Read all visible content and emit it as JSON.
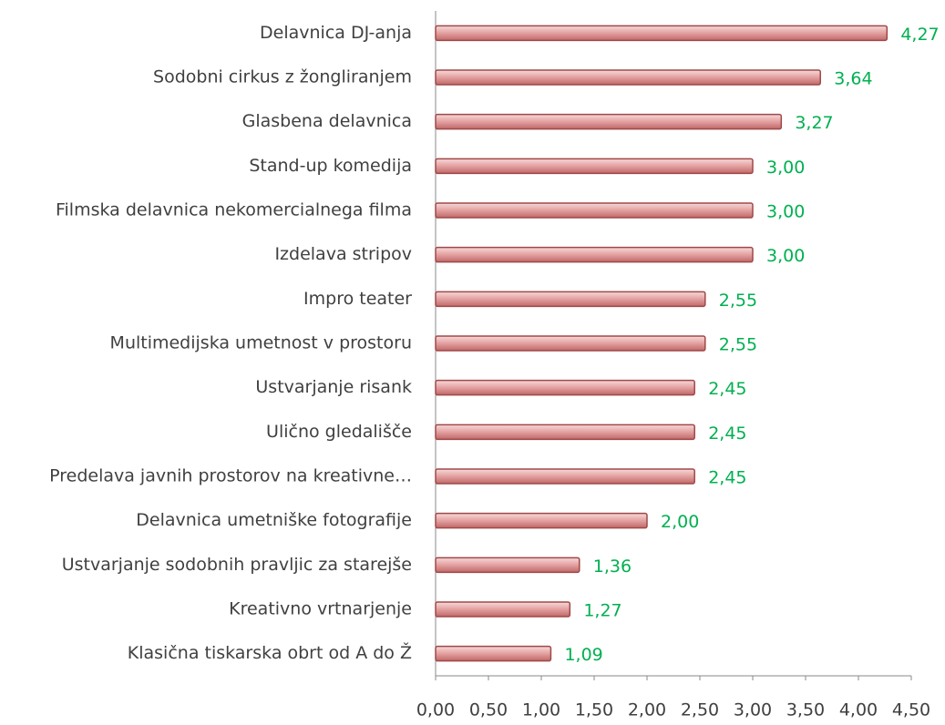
{
  "chart_data": {
    "type": "bar",
    "orientation": "horizontal",
    "categories": [
      "Delavnica DJ-anja",
      "Sodobni cirkus z žongliranjem",
      "Glasbena delavnica",
      "Stand-up komedija",
      "Filmska delavnica nekomercialnega filma",
      "Izdelava stripov",
      "Impro teater",
      "Multimedijska umetnost v prostoru",
      "Ustvarjanje risank",
      "Ulično gledališče",
      "Predelava javnih prostorov na kreativne…",
      "Delavnica umetniške fotografije",
      "Ustvarjanje sodobnih pravljic za starejše",
      "Kreativno vrtnarjenje",
      "Klasična tiskarska obrt od A do Ž"
    ],
    "values": [
      4.27,
      3.64,
      3.27,
      3.0,
      3.0,
      3.0,
      2.55,
      2.55,
      2.45,
      2.45,
      2.45,
      2.0,
      1.36,
      1.27,
      1.09
    ],
    "value_labels": [
      "4,27",
      "3,64",
      "3,27",
      "3,00",
      "3,00",
      "3,00",
      "2,55",
      "2,55",
      "2,45",
      "2,45",
      "2,45",
      "2,00",
      "1,36",
      "1,27",
      "1,09"
    ],
    "color": "#d98f8f",
    "xlim": [
      0,
      4.5
    ],
    "xticks": [
      {
        "value": 0,
        "label": "0,00"
      },
      {
        "value": 0.5,
        "label": "0,50"
      },
      {
        "value": 1,
        "label": "1,00"
      },
      {
        "value": 1.5,
        "label": "1,50"
      },
      {
        "value": 2,
        "label": "2,00"
      },
      {
        "value": 2.5,
        "label": "2,50"
      },
      {
        "value": 3,
        "label": "3,00"
      },
      {
        "value": 3.5,
        "label": "3,50"
      },
      {
        "value": 4,
        "label": "4,00"
      },
      {
        "value": 4.5,
        "label": "4,50"
      }
    ],
    "grid": false
  }
}
